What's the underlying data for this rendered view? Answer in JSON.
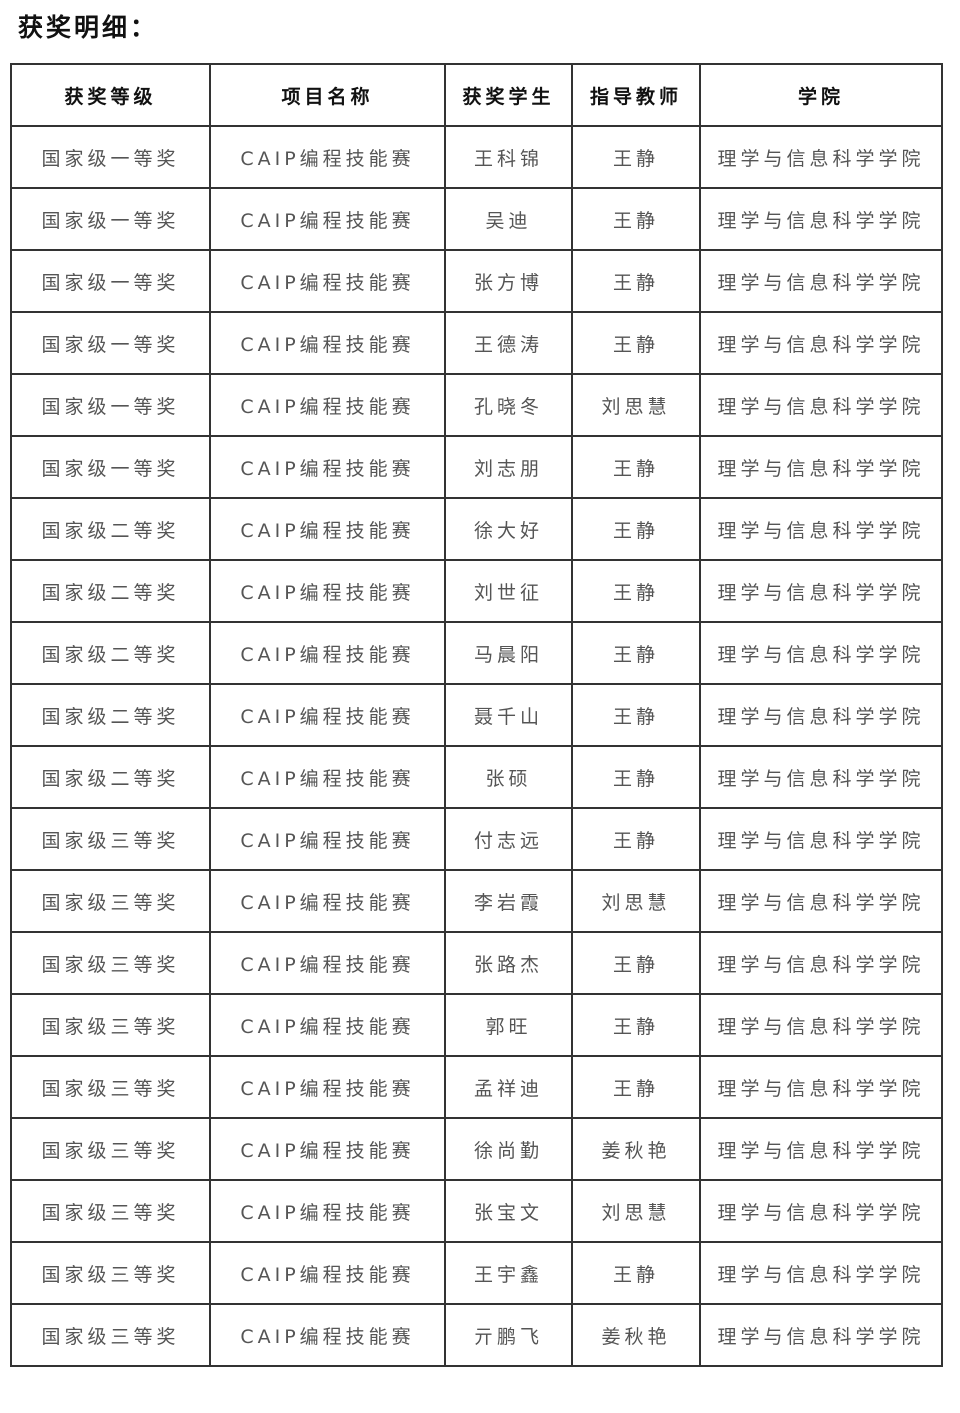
{
  "title": "获奖明细：",
  "headers": [
    "获奖等级",
    "项目名称",
    "获奖学生",
    "指导教师",
    "学院"
  ],
  "rows": [
    [
      "国家级一等奖",
      "CAIP编程技能赛",
      "王科锦",
      "王静",
      "理学与信息科学学院"
    ],
    [
      "国家级一等奖",
      "CAIP编程技能赛",
      "吴迪",
      "王静",
      "理学与信息科学学院"
    ],
    [
      "国家级一等奖",
      "CAIP编程技能赛",
      "张方博",
      "王静",
      "理学与信息科学学院"
    ],
    [
      "国家级一等奖",
      "CAIP编程技能赛",
      "王德涛",
      "王静",
      "理学与信息科学学院"
    ],
    [
      "国家级一等奖",
      "CAIP编程技能赛",
      "孔晓冬",
      "刘思慧",
      "理学与信息科学学院"
    ],
    [
      "国家级一等奖",
      "CAIP编程技能赛",
      "刘志朋",
      "王静",
      "理学与信息科学学院"
    ],
    [
      "国家级二等奖",
      "CAIP编程技能赛",
      "徐大好",
      "王静",
      "理学与信息科学学院"
    ],
    [
      "国家级二等奖",
      "CAIP编程技能赛",
      "刘世征",
      "王静",
      "理学与信息科学学院"
    ],
    [
      "国家级二等奖",
      "CAIP编程技能赛",
      "马晨阳",
      "王静",
      "理学与信息科学学院"
    ],
    [
      "国家级二等奖",
      "CAIP编程技能赛",
      "聂千山",
      "王静",
      "理学与信息科学学院"
    ],
    [
      "国家级二等奖",
      "CAIP编程技能赛",
      "张硕",
      "王静",
      "理学与信息科学学院"
    ],
    [
      "国家级三等奖",
      "CAIP编程技能赛",
      "付志远",
      "王静",
      "理学与信息科学学院"
    ],
    [
      "国家级三等奖",
      "CAIP编程技能赛",
      "李岩霞",
      "刘思慧",
      "理学与信息科学学院"
    ],
    [
      "国家级三等奖",
      "CAIP编程技能赛",
      "张路杰",
      "王静",
      "理学与信息科学学院"
    ],
    [
      "国家级三等奖",
      "CAIP编程技能赛",
      "郭旺",
      "王静",
      "理学与信息科学学院"
    ],
    [
      "国家级三等奖",
      "CAIP编程技能赛",
      "孟祥迪",
      "王静",
      "理学与信息科学学院"
    ],
    [
      "国家级三等奖",
      "CAIP编程技能赛",
      "徐尚勤",
      "姜秋艳",
      "理学与信息科学学院"
    ],
    [
      "国家级三等奖",
      "CAIP编程技能赛",
      "张宝文",
      "刘思慧",
      "理学与信息科学学院"
    ],
    [
      "国家级三等奖",
      "CAIP编程技能赛",
      "王宇鑫",
      "王静",
      "理学与信息科学学院"
    ],
    [
      "国家级三等奖",
      "CAIP编程技能赛",
      "亓鹏飞",
      "姜秋艳",
      "理学与信息科学学院"
    ]
  ]
}
